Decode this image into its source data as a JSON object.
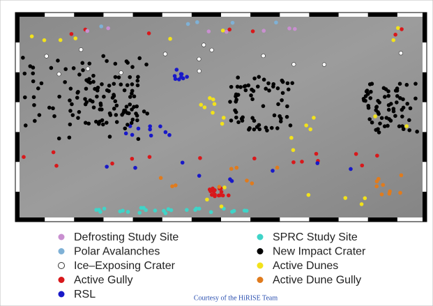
{
  "legend": [
    {
      "label": "Defrosting Study Site",
      "color": "#c98fd0"
    },
    {
      "label": "Polar Avalanches",
      "color": "#7fb1d6"
    },
    {
      "label": "Ice–Exposing Crater",
      "color": "#ffffff"
    },
    {
      "label": "Active Gully",
      "color": "#d8181b"
    },
    {
      "label": "RSL",
      "color": "#1818c8"
    },
    {
      "label": "SPRC Study Site",
      "color": "#3fd4c8"
    },
    {
      "label": "New Impact Crater",
      "color": "#000000"
    },
    {
      "label": "Active Dunes",
      "color": "#f2e21b"
    },
    {
      "label": "Active Dune Gully",
      "color": "#e07b1d"
    }
  ],
  "credit": "Courtesy of the HiRISE Team"
}
